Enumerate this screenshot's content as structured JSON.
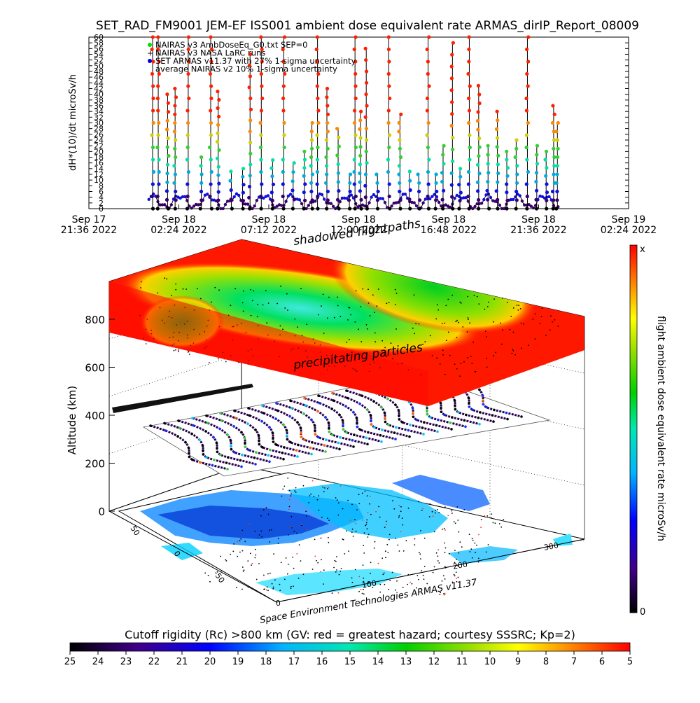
{
  "header": {
    "title": "SET_RAD_FM9001  JEM-EF ISS001 ambient dose equivalent rate ARMAS_dirIP_Report_08009"
  },
  "legend": [
    {
      "symbol": "●",
      "color": "#00dd00",
      "text": "NAIRAS v3 AmbDoseEq_G0.txt SEP=0"
    },
    {
      "symbol": "+",
      "color": "#000000",
      "text": "NAIRAS v3 NASA LaRC runs"
    },
    {
      "symbol": "●",
      "color": "#0000dd",
      "text": "SET ARMAS v11.37 with 27% 1-sigma uncertainty"
    },
    {
      "symbol": "",
      "color": "#000000",
      "text": "average NAIRAS v2 10% 1-sigma uncertainty"
    }
  ],
  "colors": {
    "series_colors": [
      "#000000",
      "#3a006a",
      "#1010e0",
      "#00aadd",
      "#00e0a0",
      "#30d030",
      "#d0d000",
      "#ff8800",
      "#ff2000"
    ],
    "colorbar_top": "#ff0000",
    "colorbar_bottom": "#000000"
  },
  "chart_data": [
    {
      "type": "scatter",
      "title": "SET_RAD_FM9001  JEM-EF ISS001 ambient dose equivalent rate ARMAS_dirIP_Report_08009",
      "ylabel": "dH*(10)/dt microSv/h",
      "xlabel": "",
      "y_ticks": [
        "0",
        "2",
        "4",
        "6",
        "8",
        "10",
        "12",
        "14",
        "16",
        "18",
        "20",
        "22",
        "24",
        "26",
        "28",
        "30",
        "32",
        "34",
        "36",
        "38",
        "40",
        "42",
        "44",
        "46",
        "48",
        "50",
        "52",
        "54",
        "56",
        "58",
        "60"
      ],
      "ylim": [
        0,
        60
      ],
      "x_ticks": [
        {
          "line1": "Sep 17",
          "line2": "21:36 2022",
          "t": 0
        },
        {
          "line1": "Sep 18",
          "line2": "02:24 2022",
          "t": 4.8
        },
        {
          "line1": "Sep 18",
          "line2": "07:12 2022",
          "t": 9.6
        },
        {
          "line1": "Sep 18",
          "line2": "12:00 2022",
          "t": 14.4
        },
        {
          "line1": "Sep 18",
          "line2": "16:48 2022",
          "t": 19.2
        },
        {
          "line1": "Sep 18",
          "line2": "21:36 2022",
          "t": 24.0
        },
        {
          "line1": "Sep 19",
          "line2": "02:24 2022",
          "t": 28.8
        }
      ],
      "xlim_hours_from_first_tick": [
        0,
        28.8
      ],
      "data_window_hours": [
        3.2,
        25.1
      ],
      "peaks": [
        {
          "t": 3.4,
          "y": 60
        },
        {
          "t": 3.7,
          "y": 60
        },
        {
          "t": 4.2,
          "y": 40
        },
        {
          "t": 4.6,
          "y": 42
        },
        {
          "t": 5.3,
          "y": 60
        },
        {
          "t": 6.0,
          "y": 18
        },
        {
          "t": 6.5,
          "y": 60
        },
        {
          "t": 6.9,
          "y": 41
        },
        {
          "t": 7.6,
          "y": 13
        },
        {
          "t": 8.2,
          "y": 14
        },
        {
          "t": 8.6,
          "y": 54
        },
        {
          "t": 9.2,
          "y": 60
        },
        {
          "t": 9.8,
          "y": 17
        },
        {
          "t": 10.4,
          "y": 60
        },
        {
          "t": 10.9,
          "y": 16
        },
        {
          "t": 11.5,
          "y": 20
        },
        {
          "t": 11.9,
          "y": 30
        },
        {
          "t": 12.2,
          "y": 60
        },
        {
          "t": 12.7,
          "y": 42
        },
        {
          "t": 13.3,
          "y": 28
        },
        {
          "t": 13.9,
          "y": 12
        },
        {
          "t": 14.2,
          "y": 60
        },
        {
          "t": 14.5,
          "y": 34
        },
        {
          "t": 14.8,
          "y": 56
        },
        {
          "t": 15.4,
          "y": 12
        },
        {
          "t": 16.0,
          "y": 60
        },
        {
          "t": 16.6,
          "y": 33
        },
        {
          "t": 17.1,
          "y": 13
        },
        {
          "t": 17.6,
          "y": 12
        },
        {
          "t": 18.1,
          "y": 60
        },
        {
          "t": 18.5,
          "y": 12
        },
        {
          "t": 18.9,
          "y": 22
        },
        {
          "t": 19.4,
          "y": 58
        },
        {
          "t": 19.8,
          "y": 14
        },
        {
          "t": 20.3,
          "y": 60
        },
        {
          "t": 20.8,
          "y": 43
        },
        {
          "t": 21.3,
          "y": 22
        },
        {
          "t": 21.8,
          "y": 34
        },
        {
          "t": 22.3,
          "y": 20
        },
        {
          "t": 22.8,
          "y": 24
        },
        {
          "t": 23.4,
          "y": 60
        },
        {
          "t": 23.9,
          "y": 22
        },
        {
          "t": 24.4,
          "y": 20
        },
        {
          "t": 24.8,
          "y": 36
        },
        {
          "t": 25.0,
          "y": 30
        }
      ],
      "baseline_range": [
        0,
        5
      ]
    },
    {
      "type": "heatmap",
      "zlabel": "Altitude (km)",
      "z_ticks": [
        "0",
        "200",
        "400",
        "600",
        "800"
      ],
      "zlim": [
        0,
        900
      ],
      "longitude_ticks": [
        "0",
        "100",
        "200",
        "300"
      ],
      "latitude_ticks": [
        "50",
        "0",
        "-50"
      ],
      "annotations": [
        "shadowed flightpaths",
        "precipitating particles"
      ],
      "credit": "Space Environment Technologies ARMAS v11.37"
    },
    {
      "type": "heatmap",
      "colorbar_label": "flight ambient dose equivalent rate microSv/h",
      "colorbar_top_label": "x",
      "colorbar_bottom_label": "0"
    },
    {
      "type": "heatmap",
      "colorbar_label": "Cutoff rigidity (Rc) >800 km (GV: red = greatest hazard; courtesy SSSRC; Kp=2)",
      "ticks": [
        "25",
        "24",
        "23",
        "22",
        "21",
        "20",
        "19",
        "18",
        "17",
        "16",
        "15",
        "14",
        "13",
        "12",
        "11",
        "10",
        "9",
        "8",
        "7",
        "6",
        "5"
      ],
      "range": [
        25,
        5
      ]
    }
  ]
}
